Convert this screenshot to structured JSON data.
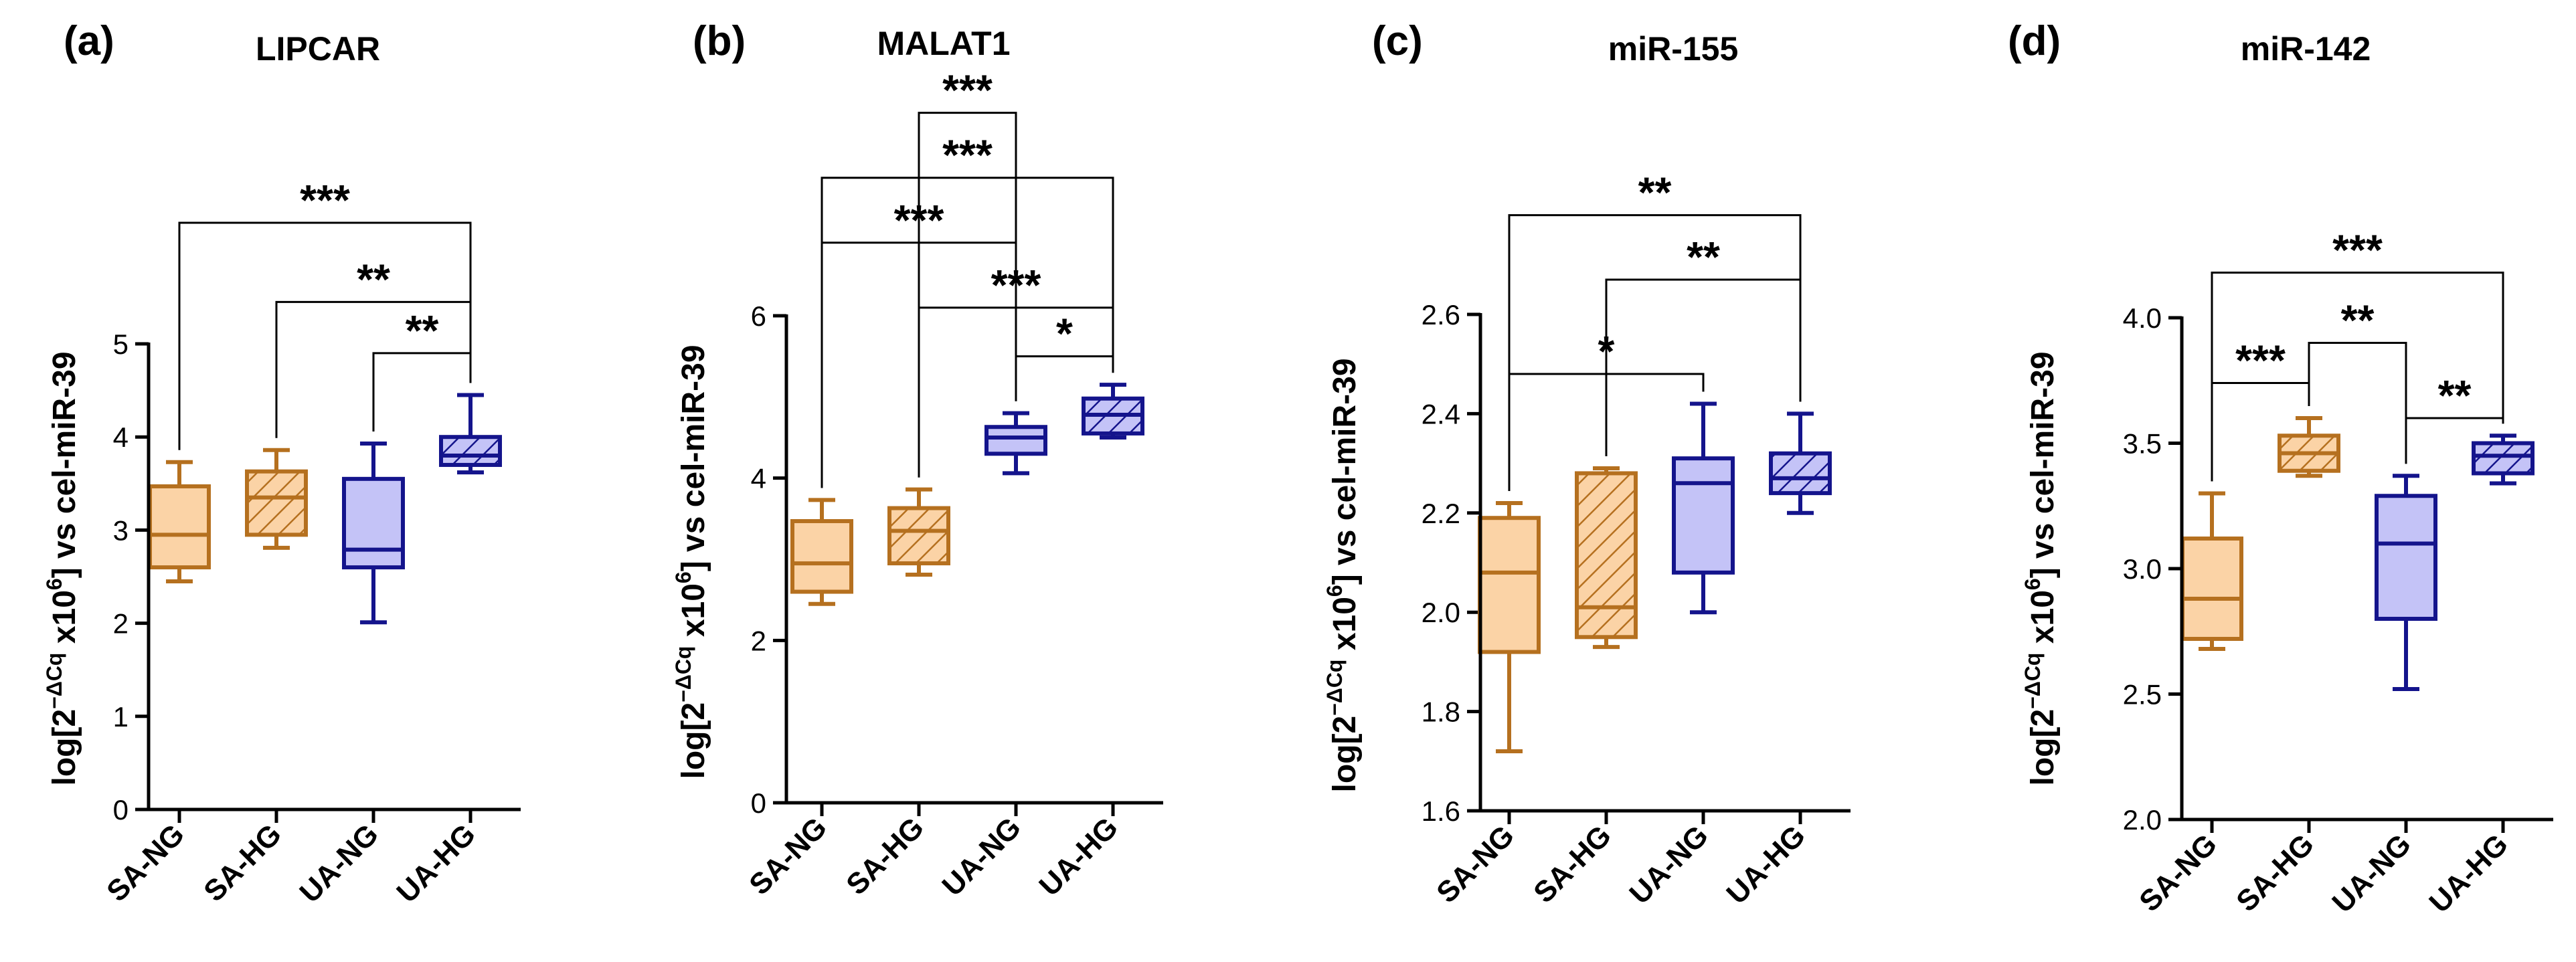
{
  "colors": {
    "SA": "#b5701f",
    "SA_fill": "#fbd3a6",
    "UA": "#14148c",
    "UA_fill": "#c4c3f7",
    "axis": "#000000"
  },
  "chart_data": [
    {
      "type": "box",
      "letter": "(a)",
      "title": "LIPCAR",
      "ylabel_parts": [
        "log[2",
        "−ΔCq",
        " x10",
        "6",
        "] vs cel-miR-39"
      ],
      "ylim": [
        0,
        5
      ],
      "yticks": [
        "0",
        "1",
        "2",
        "3",
        "4",
        "5"
      ],
      "categories": [
        "SA-NG",
        "SA-HG",
        "UA-NG",
        "UA-HG"
      ],
      "boxes": [
        {
          "min": 2.45,
          "q1": 2.6,
          "median": 2.95,
          "q3": 3.47,
          "max": 3.73,
          "group": "SA",
          "hatched": false
        },
        {
          "min": 2.81,
          "q1": 2.95,
          "median": 3.35,
          "q3": 3.63,
          "max": 3.86,
          "group": "SA",
          "hatched": true
        },
        {
          "min": 2.01,
          "q1": 2.6,
          "median": 2.79,
          "q3": 3.55,
          "max": 3.93,
          "group": "UA",
          "hatched": false
        },
        {
          "min": 3.62,
          "q1": 3.7,
          "median": 3.8,
          "q3": 4.0,
          "max": 4.45,
          "group": "UA",
          "hatched": true
        }
      ],
      "comparisons": [
        {
          "from": 0,
          "to": 3,
          "label": "***",
          "level": 6.3
        },
        {
          "from": 1,
          "to": 3,
          "label": "**",
          "level": 5.45
        },
        {
          "from": 2,
          "to": 3,
          "label": "**",
          "level": 4.9
        }
      ]
    },
    {
      "type": "box",
      "letter": "(b)",
      "title": "MALAT1",
      "ylabel_parts": [
        "log[2",
        "−ΔCq",
        " x10",
        "6",
        "] vs cel-miR-39"
      ],
      "ylim": [
        0,
        6
      ],
      "yticks": [
        "0",
        "2",
        "4",
        "6"
      ],
      "categories": [
        "SA-NG",
        "SA-HG",
        "UA-NG",
        "UA-HG"
      ],
      "boxes": [
        {
          "min": 2.45,
          "q1": 2.6,
          "median": 2.95,
          "q3": 3.47,
          "max": 3.73,
          "group": "SA",
          "hatched": false
        },
        {
          "min": 2.81,
          "q1": 2.95,
          "median": 3.35,
          "q3": 3.63,
          "max": 3.86,
          "group": "SA",
          "hatched": true
        },
        {
          "min": 4.06,
          "q1": 4.3,
          "median": 4.5,
          "q3": 4.63,
          "max": 4.8,
          "group": "UA",
          "hatched": false
        },
        {
          "min": 4.5,
          "q1": 4.55,
          "median": 4.78,
          "q3": 4.98,
          "max": 5.15,
          "group": "UA",
          "hatched": true
        }
      ],
      "comparisons": [
        {
          "from": 1,
          "to": 2,
          "label": "***",
          "level": 8.5
        },
        {
          "from": 0,
          "to": 3,
          "label": "***",
          "level": 7.7
        },
        {
          "from": 0,
          "to": 2,
          "label": "***",
          "level": 6.9
        },
        {
          "from": 1,
          "to": 3,
          "label": "***",
          "level": 6.1
        },
        {
          "from": 2,
          "to": 3,
          "label": "*",
          "level": 5.5
        }
      ]
    },
    {
      "type": "box",
      "letter": "(c)",
      "title": "miR-155",
      "ylabel_parts": [
        "log[2",
        "−ΔCq",
        " x10",
        "6",
        "] vs cel-miR-39"
      ],
      "ylim": [
        1.6,
        2.6
      ],
      "yticks": [
        "1.6",
        "1.8",
        "2.0",
        "2.2",
        "2.4",
        "2.6"
      ],
      "categories": [
        "SA-NG",
        "SA-HG",
        "UA-NG",
        "UA-HG"
      ],
      "boxes": [
        {
          "min": 1.72,
          "q1": 1.92,
          "median": 2.08,
          "q3": 2.19,
          "max": 2.22,
          "group": "SA",
          "hatched": false
        },
        {
          "min": 1.93,
          "q1": 1.95,
          "median": 2.01,
          "q3": 2.28,
          "max": 2.29,
          "group": "SA",
          "hatched": true
        },
        {
          "min": 2.0,
          "q1": 2.08,
          "median": 2.26,
          "q3": 2.31,
          "max": 2.42,
          "group": "UA",
          "hatched": false
        },
        {
          "min": 2.2,
          "q1": 2.24,
          "median": 2.27,
          "q3": 2.32,
          "max": 2.4,
          "group": "UA",
          "hatched": true
        }
      ],
      "comparisons": [
        {
          "from": 0,
          "to": 3,
          "label": "**",
          "level": 2.8
        },
        {
          "from": 1,
          "to": 3,
          "label": "**",
          "level": 2.67
        },
        {
          "from": 0,
          "to": 2,
          "label": "*",
          "level": 2.48
        }
      ]
    },
    {
      "type": "box",
      "letter": "(d)",
      "title": "miR-142",
      "ylabel_parts": [
        "log[2",
        "−ΔCq",
        " x10",
        "6",
        "] vs cel-miR-39"
      ],
      "ylim": [
        2.0,
        4.0
      ],
      "yticks": [
        "2.0",
        "2.5",
        "3.0",
        "3.5",
        "4.0"
      ],
      "categories": [
        "SA-NG",
        "SA-HG",
        "UA-NG",
        "UA-HG"
      ],
      "boxes": [
        {
          "min": 2.68,
          "q1": 2.72,
          "median": 2.88,
          "q3": 3.12,
          "max": 3.3,
          "group": "SA",
          "hatched": false
        },
        {
          "min": 3.37,
          "q1": 3.39,
          "median": 3.46,
          "q3": 3.53,
          "max": 3.6,
          "group": "SA",
          "hatched": true
        },
        {
          "min": 2.52,
          "q1": 2.8,
          "median": 3.1,
          "q3": 3.29,
          "max": 3.37,
          "group": "UA",
          "hatched": false
        },
        {
          "min": 3.34,
          "q1": 3.38,
          "median": 3.45,
          "q3": 3.5,
          "max": 3.53,
          "group": "UA",
          "hatched": true
        }
      ],
      "comparisons": [
        {
          "from": 0,
          "to": 3,
          "label": "***",
          "level": 4.18
        },
        {
          "from": 1,
          "to": 2,
          "label": "**",
          "level": 3.9
        },
        {
          "from": 0,
          "to": 1,
          "label": "***",
          "level": 3.74
        },
        {
          "from": 2,
          "to": 3,
          "label": "**",
          "level": 3.6
        }
      ]
    }
  ]
}
